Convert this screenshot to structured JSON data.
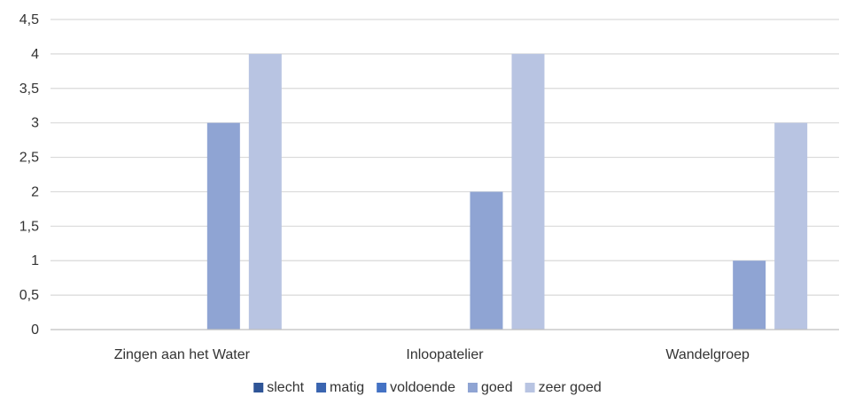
{
  "chart_data": {
    "type": "bar",
    "title": "",
    "xlabel": "",
    "ylabel": "",
    "categories": [
      "Zingen aan het Water",
      "Inloopatelier",
      "Wandelgroep"
    ],
    "series": [
      {
        "name": "slecht",
        "color": "#2f5597",
        "values": [
          0,
          0,
          0
        ]
      },
      {
        "name": "matig",
        "color": "#3a65b0",
        "values": [
          0,
          0,
          0
        ]
      },
      {
        "name": "voldoende",
        "color": "#4472c4",
        "values": [
          0,
          0,
          0
        ]
      },
      {
        "name": "goed",
        "color": "#8fa4d3",
        "values": [
          3,
          2,
          1
        ]
      },
      {
        "name": "zeer goed",
        "color": "#b8c4e2",
        "values": [
          4,
          4,
          3
        ]
      }
    ],
    "ylim": [
      0,
      4.5
    ],
    "yticks": [
      "0",
      "0,5",
      "1",
      "1,5",
      "2",
      "2,5",
      "3",
      "3,5",
      "4",
      "4,5"
    ],
    "ytick_values": [
      0,
      0.5,
      1,
      1.5,
      2,
      2.5,
      3,
      3.5,
      4,
      4.5
    ],
    "grid": true,
    "legend_position": "bottom"
  }
}
